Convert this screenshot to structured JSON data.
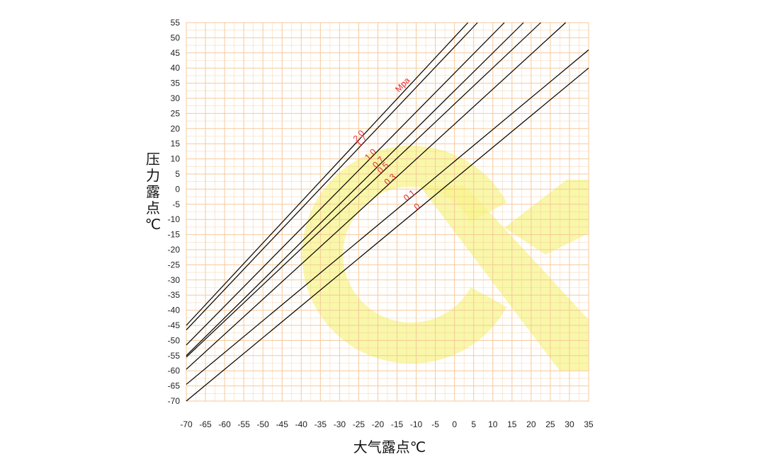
{
  "chart_data": {
    "type": "line",
    "title": "",
    "xlabel": "大气露点℃",
    "ylabel": "压力露点℃",
    "xlim": [
      -70,
      35
    ],
    "ylim": [
      -70,
      55
    ],
    "x_ticks": [
      -70,
      -65,
      -60,
      -55,
      -50,
      -45,
      -40,
      -35,
      -30,
      -25,
      -20,
      -15,
      -10,
      -5,
      0,
      5,
      10,
      15,
      20,
      25,
      30,
      35
    ],
    "y_ticks": [
      55,
      50,
      45,
      40,
      35,
      30,
      25,
      20,
      15,
      10,
      5,
      0,
      -5,
      -10,
      -15,
      -20,
      -25,
      -30,
      -35,
      -40,
      -45,
      -50,
      -55,
      -60,
      -65,
      -70
    ],
    "grid": true,
    "unit_annotation": "Mpa",
    "series": [
      {
        "name": "2.0",
        "x": [
          -70,
          3.5
        ],
        "y": [
          -45,
          55
        ]
      },
      {
        "name": "1.7",
        "x": [
          -70,
          6
        ],
        "y": [
          -46.5,
          55
        ]
      },
      {
        "name": "1.0",
        "x": [
          -70,
          13
        ],
        "y": [
          -51.5,
          55
        ]
      },
      {
        "name": "0.7",
        "x": [
          -70,
          18
        ],
        "y": [
          -55,
          55
        ]
      },
      {
        "name": "0.5",
        "x": [
          -70,
          22.5
        ],
        "y": [
          -55.5,
          55
        ]
      },
      {
        "name": "0.3",
        "x": [
          -70,
          29
        ],
        "y": [
          -59.5,
          55
        ]
      },
      {
        "name": "0.1",
        "x": [
          -70,
          35
        ],
        "y": [
          -64.5,
          46
        ]
      },
      {
        "name": "0",
        "x": [
          -70,
          35
        ],
        "y": [
          -70,
          40
        ]
      }
    ],
    "colors": {
      "grid": "#f6c99a",
      "line": "#000000",
      "label": "#e0282d",
      "watermark": "#f7f48c"
    }
  }
}
